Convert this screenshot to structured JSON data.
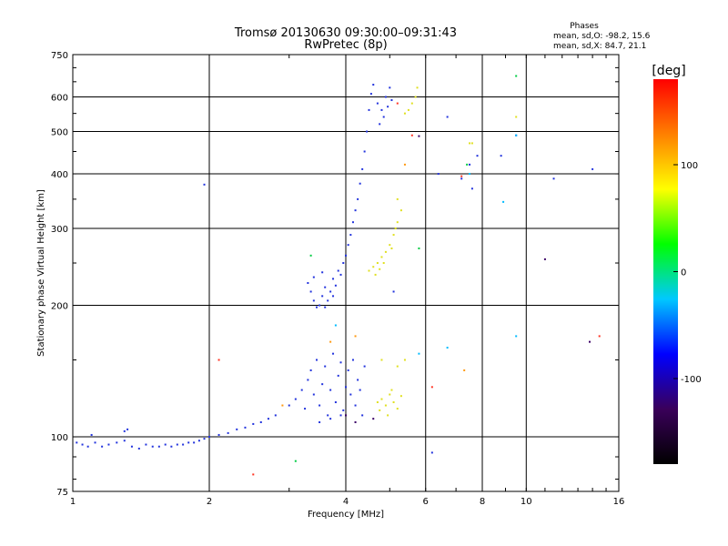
{
  "chart_data": {
    "type": "scatter",
    "title": "Tromsø 20130630 09:30:00–09:31:43",
    "subtitle": "RwPretec (8p)",
    "xlabel": "Frequency [MHz]",
    "ylabel": "Stationary phase Virtual Height [km]",
    "x_scale": "log",
    "y_scale": "log",
    "xlim": [
      1,
      16
    ],
    "ylim": [
      75,
      750
    ],
    "x_ticks": [
      1,
      2,
      4,
      6,
      8,
      10,
      16
    ],
    "x_tick_labels": [
      "1",
      "2",
      "4",
      "6",
      "8",
      "10",
      "16"
    ],
    "y_ticks": [
      75,
      100,
      200,
      300,
      400,
      500,
      600,
      750
    ],
    "y_tick_labels": [
      "75",
      "100",
      "200",
      "300",
      "400",
      "500",
      "600",
      "750"
    ],
    "grid": true,
    "stats": {
      "heading": "Phases",
      "line_o": "mean, sd,O: -98.2, 15.6",
      "line_x": "mean, sd,X:  84.7, 21.1"
    },
    "colorbar": {
      "label": "[deg]",
      "range": [
        -180,
        180
      ],
      "tick_values": [
        100,
        0,
        -100
      ],
      "tick_labels": [
        "100",
        "0",
        "-100"
      ],
      "stops": [
        "#000000",
        "#3a005a",
        "#0000ff",
        "#00c8ff",
        "#00ff00",
        "#ffff00",
        "#ff8000",
        "#ff0000"
      ]
    },
    "series": [
      {
        "color": "#2233dd",
        "points": [
          [
            1.02,
            97
          ],
          [
            1.05,
            96
          ],
          [
            1.08,
            95
          ],
          [
            1.12,
            97
          ],
          [
            1.16,
            95
          ],
          [
            1.2,
            96
          ],
          [
            1.25,
            97
          ],
          [
            1.3,
            98
          ],
          [
            1.35,
            95
          ],
          [
            1.4,
            94
          ],
          [
            1.45,
            96
          ],
          [
            1.5,
            95
          ],
          [
            1.55,
            95
          ],
          [
            1.6,
            96
          ],
          [
            1.65,
            95
          ],
          [
            1.7,
            96
          ],
          [
            1.75,
            96
          ],
          [
            1.8,
            97
          ],
          [
            1.85,
            97
          ],
          [
            1.9,
            98
          ],
          [
            1.95,
            99
          ],
          [
            2.0,
            100
          ],
          [
            2.1,
            101
          ],
          [
            2.2,
            102
          ],
          [
            2.3,
            104
          ],
          [
            2.4,
            105
          ],
          [
            2.5,
            107
          ],
          [
            2.6,
            108
          ],
          [
            2.7,
            110
          ],
          [
            2.8,
            112
          ],
          [
            1.3,
            103
          ],
          [
            1.32,
            104
          ],
          [
            1.1,
            101
          ],
          [
            1.95,
            378
          ],
          [
            3.0,
            118
          ],
          [
            3.1,
            122
          ],
          [
            3.2,
            128
          ],
          [
            3.25,
            116
          ],
          [
            3.3,
            135
          ],
          [
            3.35,
            142
          ],
          [
            3.4,
            125
          ],
          [
            3.45,
            150
          ],
          [
            3.5,
            118
          ],
          [
            3.55,
            132
          ],
          [
            3.6,
            145
          ],
          [
            3.65,
            112
          ],
          [
            3.7,
            128
          ],
          [
            3.75,
            155
          ],
          [
            3.8,
            120
          ],
          [
            3.85,
            138
          ],
          [
            3.9,
            148
          ],
          [
            3.95,
            115
          ],
          [
            4.0,
            130
          ],
          [
            4.05,
            142
          ],
          [
            4.1,
            125
          ],
          [
            4.15,
            150
          ],
          [
            4.2,
            118
          ],
          [
            4.25,
            135
          ],
          [
            4.3,
            128
          ],
          [
            4.35,
            112
          ],
          [
            4.4,
            145
          ],
          [
            3.5,
            108
          ],
          [
            3.7,
            110
          ],
          [
            3.9,
            112
          ],
          [
            3.3,
            225
          ],
          [
            3.35,
            215
          ],
          [
            3.4,
            205
          ],
          [
            3.45,
            198
          ],
          [
            3.5,
            200
          ],
          [
            3.55,
            210
          ],
          [
            3.6,
            220
          ],
          [
            3.65,
            205
          ],
          [
            3.7,
            215
          ],
          [
            3.75,
            230
          ],
          [
            3.8,
            222
          ],
          [
            3.85,
            240
          ],
          [
            3.9,
            235
          ],
          [
            3.95,
            250
          ],
          [
            4.0,
            260
          ],
          [
            4.05,
            275
          ],
          [
            4.1,
            290
          ],
          [
            4.15,
            310
          ],
          [
            4.2,
            330
          ],
          [
            4.25,
            350
          ],
          [
            4.3,
            380
          ],
          [
            4.35,
            410
          ],
          [
            4.4,
            450
          ],
          [
            4.45,
            500
          ],
          [
            4.5,
            560
          ],
          [
            4.55,
            610
          ],
          [
            4.6,
            640
          ],
          [
            4.7,
            580
          ],
          [
            4.8,
            560
          ],
          [
            4.9,
            600
          ],
          [
            5.0,
            630
          ],
          [
            5.05,
            590
          ],
          [
            4.75,
            520
          ],
          [
            4.85,
            540
          ],
          [
            4.95,
            570
          ],
          [
            3.4,
            232
          ],
          [
            3.55,
            238
          ],
          [
            3.75,
            210
          ],
          [
            3.6,
            198
          ],
          [
            6.4,
            400
          ],
          [
            7.2,
            390
          ],
          [
            7.5,
            420
          ],
          [
            7.8,
            440
          ],
          [
            8.8,
            440
          ],
          [
            9.5,
            490
          ],
          [
            11.5,
            390
          ],
          [
            14.0,
            410
          ],
          [
            5.1,
            215
          ],
          [
            6.2,
            92
          ],
          [
            7.6,
            370
          ],
          [
            6.7,
            540
          ]
        ]
      },
      {
        "color": "#e0e020",
        "points": [
          [
            4.5,
            240
          ],
          [
            4.6,
            245
          ],
          [
            4.7,
            250
          ],
          [
            4.8,
            258
          ],
          [
            4.9,
            265
          ],
          [
            5.0,
            275
          ],
          [
            5.1,
            290
          ],
          [
            5.15,
            300
          ],
          [
            5.2,
            310
          ],
          [
            5.3,
            330
          ],
          [
            4.65,
            235
          ],
          [
            4.75,
            242
          ],
          [
            4.85,
            250
          ],
          [
            5.2,
            350
          ],
          [
            5.05,
            270
          ],
          [
            5.4,
            550
          ],
          [
            5.5,
            560
          ],
          [
            5.6,
            580
          ],
          [
            5.7,
            600
          ],
          [
            5.75,
            630
          ],
          [
            4.7,
            120
          ],
          [
            4.8,
            122
          ],
          [
            4.9,
            118
          ],
          [
            5.0,
            125
          ],
          [
            5.1,
            120
          ],
          [
            5.2,
            116
          ],
          [
            5.3,
            124
          ],
          [
            4.75,
            115
          ],
          [
            4.95,
            112
          ],
          [
            5.05,
            128
          ],
          [
            5.2,
            145
          ],
          [
            5.4,
            150
          ],
          [
            4.8,
            150
          ],
          [
            7.5,
            470
          ],
          [
            9.5,
            540
          ],
          [
            7.6,
            470
          ]
        ]
      },
      {
        "color": "#00cc44",
        "points": [
          [
            9.5,
            670
          ],
          [
            3.35,
            260
          ],
          [
            5.8,
            270
          ],
          [
            3.1,
            88
          ],
          [
            7.4,
            420
          ]
        ]
      },
      {
        "color": "#00bbff",
        "points": [
          [
            6.7,
            160
          ],
          [
            7.5,
            400
          ],
          [
            9.5,
            170
          ],
          [
            9.5,
            490
          ],
          [
            8.9,
            345
          ],
          [
            3.8,
            180
          ],
          [
            5.8,
            155
          ]
        ]
      },
      {
        "color": "#ff3322",
        "points": [
          [
            2.5,
            82
          ],
          [
            5.6,
            490
          ],
          [
            5.2,
            580
          ],
          [
            6.2,
            130
          ],
          [
            14.5,
            170
          ],
          [
            2.1,
            150
          ],
          [
            7.2,
            395
          ]
        ]
      },
      {
        "color": "#ff9911",
        "points": [
          [
            3.7,
            165
          ],
          [
            4.2,
            170
          ],
          [
            5.4,
            420
          ],
          [
            7.3,
            142
          ],
          [
            2.9,
            118
          ]
        ]
      },
      {
        "color": "#3a0066",
        "points": [
          [
            4.0,
            112
          ],
          [
            4.2,
            108
          ],
          [
            4.6,
            110
          ],
          [
            11.0,
            255
          ],
          [
            13.8,
            165
          ],
          [
            5.8,
            488
          ]
        ]
      }
    ]
  }
}
